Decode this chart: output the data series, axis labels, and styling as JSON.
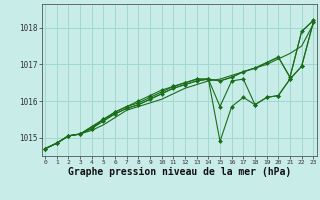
{
  "bg_color": "#c8ece8",
  "grid_color": "#a0d8d0",
  "line_color": "#1a6e1a",
  "marker_color": "#1a6e1a",
  "xlabel": "Graphe pression niveau de la mer (hPa)",
  "xlabel_fontsize": 7,
  "xticks": [
    0,
    1,
    2,
    3,
    4,
    5,
    6,
    7,
    8,
    9,
    10,
    11,
    12,
    13,
    14,
    15,
    16,
    17,
    18,
    19,
    20,
    21,
    22,
    23
  ],
  "yticks": [
    1015,
    1016,
    1017,
    1018
  ],
  "ylim": [
    1014.5,
    1018.65
  ],
  "xlim": [
    -0.3,
    23.3
  ],
  "series": [
    {
      "x": [
        0,
        1,
        2,
        3,
        4,
        5,
        6,
        7,
        8,
        9,
        10,
        11,
        12,
        13,
        14,
        15,
        16,
        17,
        18,
        19,
        20,
        21,
        22,
        23
      ],
      "y": [
        1014.7,
        1014.85,
        1015.05,
        1015.1,
        1015.2,
        1015.35,
        1015.55,
        1015.75,
        1015.85,
        1015.95,
        1016.05,
        1016.2,
        1016.35,
        1016.45,
        1016.55,
        1016.6,
        1016.7,
        1016.8,
        1016.9,
        1017.0,
        1017.15,
        1017.3,
        1017.5,
        1018.1
      ],
      "has_markers": false
    },
    {
      "x": [
        0,
        1,
        2,
        3,
        4,
        5,
        6,
        7,
        8,
        9,
        10,
        11,
        12,
        13,
        14,
        15,
        16,
        17,
        18,
        19,
        20,
        21,
        22,
        23
      ],
      "y": [
        1014.7,
        1014.85,
        1015.05,
        1015.1,
        1015.3,
        1015.5,
        1015.7,
        1015.85,
        1015.95,
        1016.1,
        1016.25,
        1016.4,
        1016.5,
        1016.6,
        1016.6,
        1015.85,
        1016.55,
        1016.6,
        1015.9,
        1016.1,
        1016.15,
        1016.6,
        1016.95,
        1018.15
      ],
      "has_markers": true
    },
    {
      "x": [
        0,
        1,
        2,
        3,
        4,
        5,
        6,
        7,
        8,
        9,
        10,
        11,
        12,
        13,
        14,
        15,
        16,
        17,
        18,
        19,
        20,
        21,
        22,
        23
      ],
      "y": [
        1014.7,
        1014.85,
        1015.05,
        1015.1,
        1015.25,
        1015.5,
        1015.7,
        1015.85,
        1016.0,
        1016.15,
        1016.3,
        1016.4,
        1016.5,
        1016.6,
        1016.6,
        1014.9,
        1015.85,
        1016.1,
        1015.9,
        1016.1,
        1016.15,
        1016.6,
        1016.95,
        1018.15
      ],
      "has_markers": true
    },
    {
      "x": [
        0,
        1,
        2,
        3,
        4,
        5,
        6,
        7,
        8,
        9,
        10,
        11,
        12,
        13,
        14,
        15,
        16,
        17,
        18,
        19,
        20,
        21,
        22,
        23
      ],
      "y": [
        1014.7,
        1014.85,
        1015.05,
        1015.1,
        1015.25,
        1015.45,
        1015.65,
        1015.8,
        1015.9,
        1016.05,
        1016.2,
        1016.35,
        1016.45,
        1016.55,
        1016.6,
        1016.55,
        1016.65,
        1016.8,
        1016.9,
        1017.05,
        1017.2,
        1016.65,
        1017.9,
        1018.2
      ],
      "has_markers": true
    },
    {
      "x": [
        0,
        1,
        2,
        3,
        4,
        5,
        6,
        7,
        8,
        9,
        10,
        11,
        12,
        13,
        14,
        15,
        16,
        17,
        18,
        19,
        20,
        21,
        22,
        23
      ],
      "y": [
        1014.7,
        1014.85,
        1015.05,
        1015.1,
        1015.3,
        1015.5,
        1015.65,
        1015.8,
        1015.9,
        1016.05,
        1016.2,
        1016.35,
        1016.45,
        1016.55,
        1016.6,
        1016.55,
        1016.65,
        1016.8,
        1016.9,
        1017.05,
        1017.2,
        1016.65,
        1017.9,
        1018.2
      ],
      "has_markers": false
    }
  ]
}
